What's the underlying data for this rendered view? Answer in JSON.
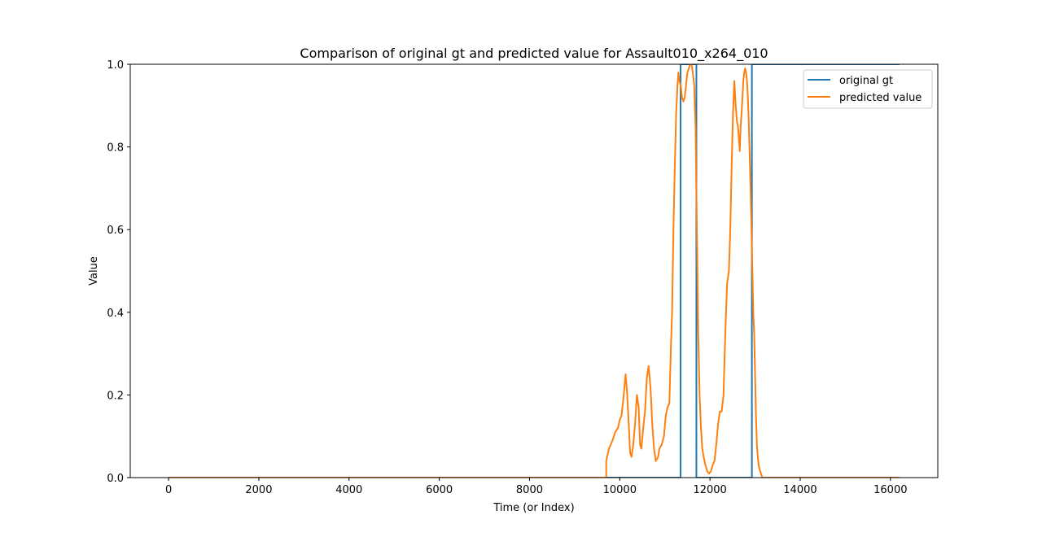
{
  "chart_data": {
    "type": "line",
    "title": "Comparison of original gt and predicted value for Assault010_x264_010",
    "xlabel": "Time (or Index)",
    "ylabel": "Value",
    "xlim": [
      -850,
      17050
    ],
    "ylim": [
      0,
      1.0
    ],
    "xticks": [
      0,
      2000,
      4000,
      6000,
      8000,
      10000,
      12000,
      14000,
      16000
    ],
    "xtick_labels": [
      "0",
      "2000",
      "4000",
      "6000",
      "8000",
      "10000",
      "12000",
      "14000",
      "16000"
    ],
    "yticks": [
      0,
      0.2,
      0.4,
      0.6,
      0.8,
      1.0
    ],
    "ytick_labels": [
      "0.0",
      "0.2",
      "0.4",
      "0.6",
      "0.8",
      "1.0"
    ],
    "grid": false,
    "legend": "top-right",
    "series": [
      {
        "name": "original gt",
        "color": "#1f77b4",
        "x": [
          0,
          11349,
          11349,
          11699,
          11699,
          12929,
          12929,
          16200
        ],
        "y": [
          0,
          0,
          1,
          1,
          0,
          0,
          1,
          1
        ]
      },
      {
        "name": "predicted value",
        "color": "#ff7f0e",
        "x": [
          0,
          9700,
          9700,
          9760,
          9840,
          9900,
          9960,
          10000,
          10040,
          10080,
          10130,
          10160,
          10190,
          10230,
          10260,
          10300,
          10340,
          10380,
          10420,
          10450,
          10480,
          10520,
          10560,
          10600,
          10640,
          10680,
          10700,
          10720,
          10760,
          10800,
          10850,
          10880,
          10930,
          10980,
          11020,
          11060,
          11100,
          11130,
          11160,
          11190,
          11220,
          11250,
          11280,
          11300,
          11320,
          11350,
          11380,
          11410,
          11440,
          11470,
          11500,
          11530,
          11560,
          11590,
          11620,
          11650,
          11680,
          11710,
          11740,
          11770,
          11800,
          11830,
          11860,
          11900,
          11940,
          11980,
          12020,
          12060,
          12100,
          12140,
          12180,
          12220,
          12260,
          12300,
          12340,
          12380,
          12420,
          12450,
          12480,
          12510,
          12540,
          12570,
          12600,
          12620,
          12640,
          12660,
          12680,
          12700,
          12720,
          12740,
          12760,
          12780,
          12800,
          12820,
          12840,
          12860,
          12880,
          12900,
          12920,
          12940,
          12960,
          12980,
          13000,
          13020,
          13040,
          13060,
          13080,
          13100,
          13130,
          13160,
          13190,
          13220,
          13250,
          13280,
          13300,
          13300,
          16200
        ],
        "y": [
          0,
          0,
          0.04,
          0.07,
          0.09,
          0.11,
          0.12,
          0.14,
          0.15,
          0.19,
          0.25,
          0.21,
          0.15,
          0.06,
          0.05,
          0.08,
          0.13,
          0.2,
          0.17,
          0.08,
          0.07,
          0.12,
          0.16,
          0.24,
          0.27,
          0.22,
          0.18,
          0.13,
          0.07,
          0.04,
          0.05,
          0.07,
          0.08,
          0.1,
          0.15,
          0.17,
          0.18,
          0.3,
          0.4,
          0.6,
          0.75,
          0.88,
          0.95,
          0.98,
          0.96,
          0.95,
          0.92,
          0.91,
          0.92,
          0.95,
          0.98,
          0.99,
          1.0,
          1.0,
          0.98,
          0.95,
          0.85,
          0.6,
          0.35,
          0.2,
          0.12,
          0.07,
          0.05,
          0.03,
          0.015,
          0.01,
          0.015,
          0.03,
          0.04,
          0.08,
          0.13,
          0.16,
          0.16,
          0.2,
          0.35,
          0.47,
          0.5,
          0.6,
          0.75,
          0.88,
          0.96,
          0.9,
          0.86,
          0.85,
          0.82,
          0.79,
          0.85,
          0.88,
          0.92,
          0.96,
          0.98,
          0.99,
          0.98,
          0.96,
          0.92,
          0.86,
          0.78,
          0.7,
          0.6,
          0.5,
          0.4,
          0.35,
          0.25,
          0.15,
          0.08,
          0.05,
          0.03,
          0.02,
          0.01,
          0.0,
          0.0,
          0.0,
          0.0,
          0.0,
          0.0,
          0,
          0
        ]
      }
    ]
  }
}
